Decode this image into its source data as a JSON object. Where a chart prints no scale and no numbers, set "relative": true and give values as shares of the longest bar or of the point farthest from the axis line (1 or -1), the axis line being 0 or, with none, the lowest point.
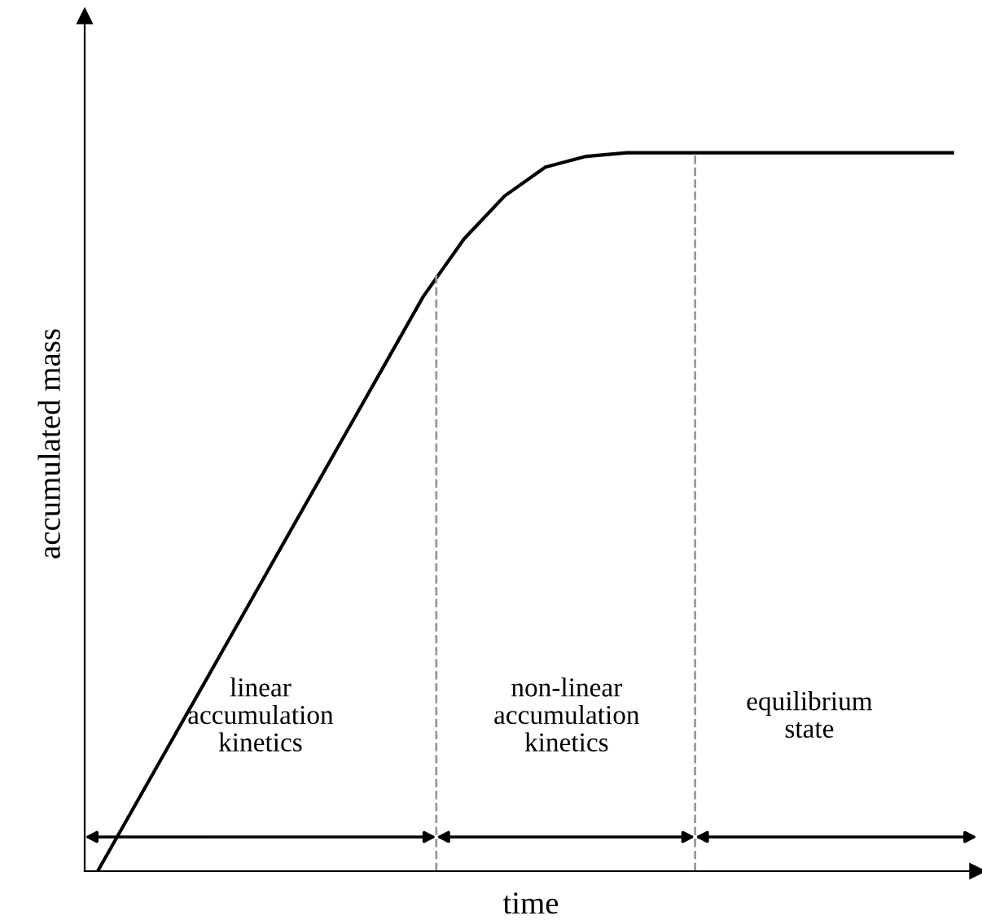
{
  "chart_data": {
    "type": "line",
    "relative": true,
    "xlabel": "time",
    "ylabel": "accumulated mass",
    "categories": [
      null,
      null,
      null,
      null,
      null,
      null,
      null,
      null,
      null,
      null,
      null,
      null,
      null,
      null,
      null,
      null,
      null,
      null,
      null,
      null,
      null,
      null
    ],
    "series": [
      {
        "color": "#000000",
        "values": [
          0,
          0.1,
          0.2,
          0.3,
          0.4,
          0.5,
          0.6,
          0.7,
          0.8,
          0.88,
          0.94,
          0.98,
          0.995,
          1.0,
          1.0,
          1.0,
          1.0,
          1.0,
          1.0,
          1.0,
          1.0,
          1.0
        ]
      }
    ],
    "annotations": [
      "linear\naccumulation\nkinetics",
      "non-linear\naccumulation\nkinetics",
      "equilibrium\nstate"
    ],
    "marker": "none",
    "line_style": "solid",
    "legend": false
  }
}
